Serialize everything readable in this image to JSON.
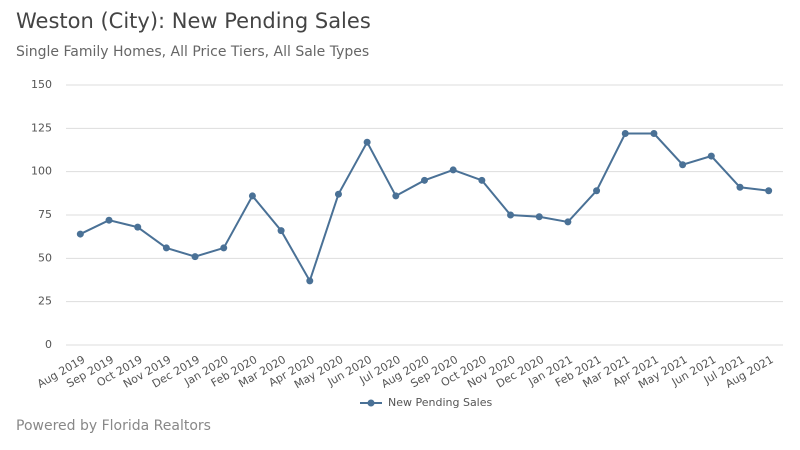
{
  "chart_data": {
    "type": "line",
    "title": "Weston (City): New Pending Sales",
    "subtitle": "Single Family Homes, All Price Tiers, All Sale Types",
    "source": "Powered by Florida Realtors",
    "categories": [
      "Aug 2019",
      "Sep 2019",
      "Oct 2019",
      "Nov 2019",
      "Dec 2019",
      "Jan 2020",
      "Feb 2020",
      "Mar 2020",
      "Apr 2020",
      "May 2020",
      "Jun 2020",
      "Jul 2020",
      "Aug 2020",
      "Sep 2020",
      "Oct 2020",
      "Nov 2020",
      "Dec 2020",
      "Jan 2021",
      "Feb 2021",
      "Mar 2021",
      "Apr 2021",
      "May 2021",
      "Jun 2021",
      "Jul 2021",
      "Aug 2021"
    ],
    "series": [
      {
        "name": "New Pending Sales",
        "color": "#4a7196",
        "values": [
          64,
          72,
          68,
          56,
          51,
          56,
          86,
          66,
          37,
          87,
          117,
          86,
          95,
          101,
          95,
          75,
          74,
          71,
          89,
          122,
          122,
          104,
          109,
          91,
          89
        ]
      }
    ],
    "ylim": [
      0,
      150
    ],
    "yticks": [
      0,
      25,
      50,
      75,
      100,
      125,
      150
    ],
    "grid": true,
    "legend": "bottom"
  }
}
